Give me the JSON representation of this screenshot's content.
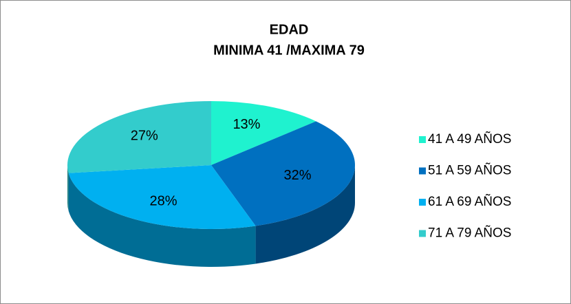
{
  "chart_data": {
    "type": "pie",
    "title": "EDAD",
    "subtitle": "MINIMA 41 /MAXIMA 79",
    "categories": [
      "41 A 49 AÑOS",
      "51 A 59 AÑOS",
      "61 A 69 AÑOS",
      "71 A 79 AÑOS"
    ],
    "values": [
      13,
      32,
      28,
      27
    ],
    "value_labels": [
      "13%",
      "32%",
      "28%",
      "27%"
    ],
    "colors": [
      "#1ff2cf",
      "#0070c0",
      "#00b0f0",
      "#33cccc"
    ],
    "legend": "right"
  }
}
